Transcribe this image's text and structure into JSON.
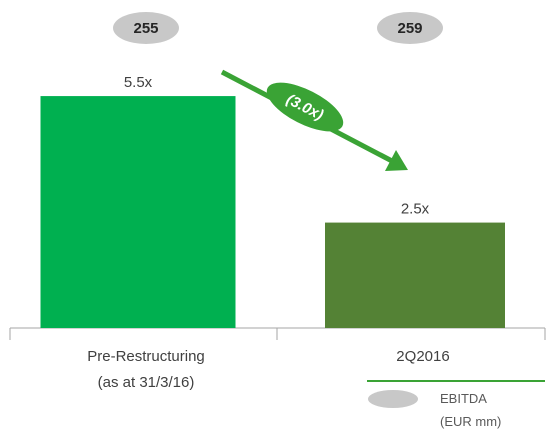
{
  "chart_data": {
    "type": "bar",
    "categories": [
      "Pre-Restructuring\n(as at 31/3/16)",
      "2Q2016"
    ],
    "values": [
      5.5,
      2.5
    ],
    "value_labels": [
      "5.5x",
      "2.5x"
    ],
    "colors": [
      "#00b050",
      "#548235"
    ],
    "ylim": [
      0,
      6
    ],
    "ebitda": {
      "label": "EBITDA\n(EUR mm)",
      "values": [
        255,
        259
      ],
      "color": "#c8c8c8"
    },
    "annotation": "(3.0x)",
    "annotation_color": "#3aa335"
  }
}
